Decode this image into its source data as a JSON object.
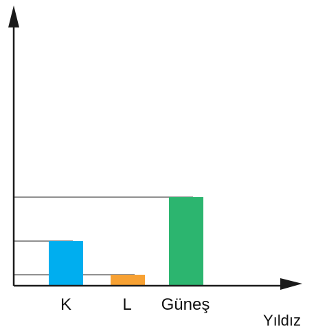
{
  "chart_data": {
    "type": "bar",
    "categories": [
      "K",
      "L",
      "Güneş"
    ],
    "values": [
      64,
      15,
      128
    ],
    "xlabel": "Yıldız",
    "ylabel": "",
    "ylim": [
      0,
      400
    ],
    "grid": false,
    "reference_lines": true,
    "colors": [
      "#00aeef",
      "#f7a133",
      "#2cb56f"
    ]
  }
}
